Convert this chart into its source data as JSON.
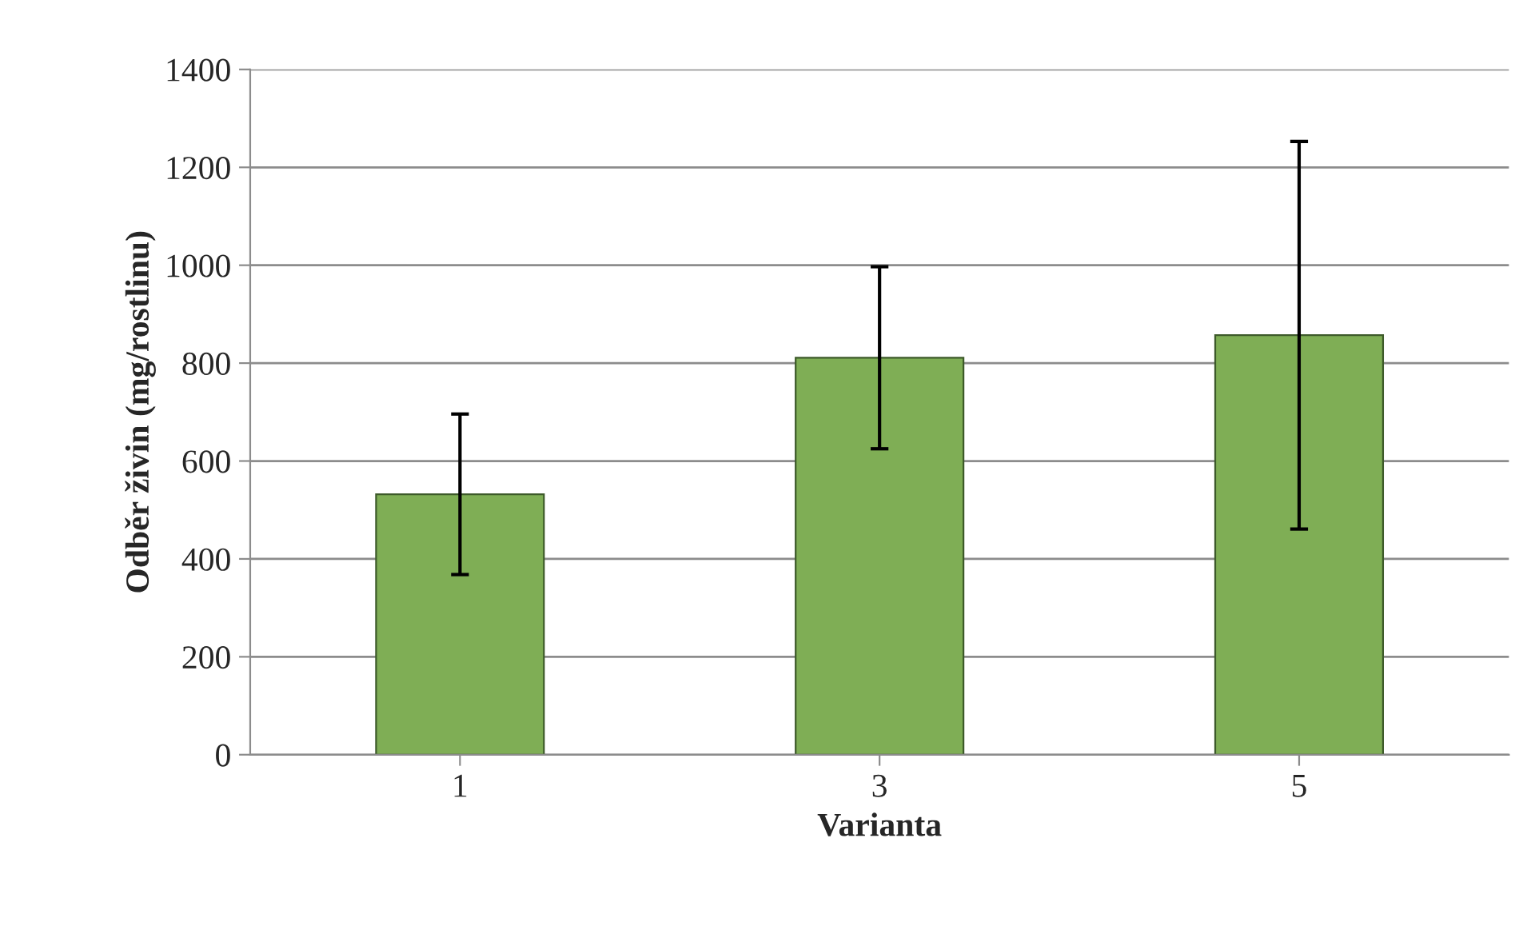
{
  "chart_data": {
    "type": "bar",
    "xlabel": "Varianta",
    "ylabel": "Odběr živin (mg/rostlinu)",
    "categories": [
      "1",
      "3",
      "5"
    ],
    "values": [
      532,
      811,
      857
    ],
    "errors": [
      164,
      186,
      396
    ],
    "color": "#7fae55",
    "ylim": [
      0,
      1400
    ],
    "yticks": [
      0,
      200,
      400,
      600,
      800,
      1000,
      1200,
      1400
    ],
    "grid": "y"
  }
}
